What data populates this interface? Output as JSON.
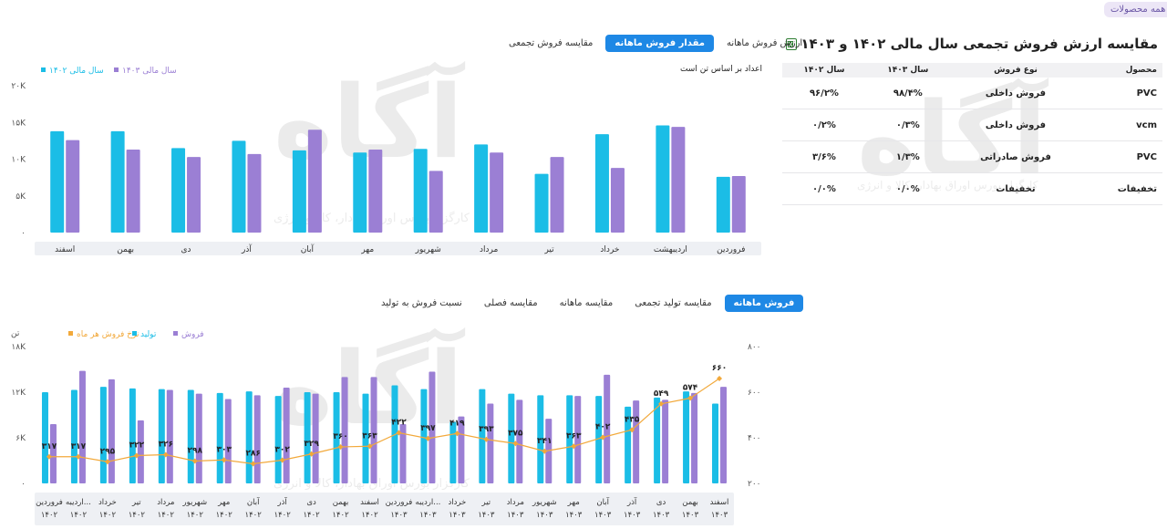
{
  "filter_badge": "همه محصولات",
  "table": {
    "title": "مقایسه ارزش فروش تجمعی سال مالی ۱۴۰۲ و ۱۴۰۳",
    "headers": [
      "محصول",
      "نوع فروش",
      "سال ۱۴۰۳",
      "سال ۱۴۰۲"
    ],
    "rows": [
      [
        "PVC",
        "فروش داخلی",
        "۹۸/۴%",
        "۹۶/۲%"
      ],
      [
        "vcm",
        "فروش داخلی",
        "۰/۳%",
        "۰/۲%"
      ],
      [
        "PVC",
        "فروش صادراتی",
        "۱/۳%",
        "۳/۶%"
      ],
      [
        "تخفیفات",
        "تخفیفات",
        "۰/۰%",
        "۰/۰%"
      ]
    ]
  },
  "top_tabs": [
    "ارزش فروش ماهانه",
    "مقدار فروش ماهانه",
    "مقایسه فروش تجمعی"
  ],
  "top_tab_active": 1,
  "top_note": "اعداد بر اساس تن است",
  "bottom_tabs": [
    "فروش ماهانه",
    "مقایسه تولید تجمعی",
    "مقایسه ماهانه",
    "مقایسه فصلی",
    "نسبت فروش به تولید"
  ],
  "bottom_tab_active": 0,
  "watermark": {
    "brand": "آگاه",
    "slogan": "کارگزار بورس اوراق بهادار، کالا و انرژی"
  },
  "colors": {
    "cyan": "#1bbde6",
    "purple": "#9b7fd4",
    "orange": "#f2a93b",
    "active_tab": "#1e88e5"
  },
  "chart_data": [
    {
      "type": "bar",
      "categories": [
        "فروردین",
        "اردیبهشت",
        "خرداد",
        "تیر",
        "مرداد",
        "شهریور",
        "مهر",
        "آبان",
        "آذر",
        "دی",
        "بهمن",
        "اسفند"
      ],
      "axis_direction": "right-to-left",
      "series": [
        {
          "name": "سال مالی ۱۴۰۲",
          "color": "#1bbde6",
          "values": [
            7600,
            14600,
            13400,
            8000,
            12000,
            11400,
            10900,
            11200,
            12500,
            11500,
            13800,
            13800
          ]
        },
        {
          "name": "سال مالی ۱۴۰۳",
          "color": "#9b7fd4",
          "values": [
            7700,
            14400,
            8800,
            10300,
            10900,
            8400,
            11300,
            14000,
            10700,
            10300,
            11300,
            12600
          ]
        }
      ],
      "yticks": [
        "۰",
        "۵K",
        "۱۰K",
        "۱۵K",
        "۲۰K"
      ],
      "ylim": [
        0,
        20000
      ],
      "legend": "top-left",
      "grid": false
    },
    {
      "type": "bar",
      "categories": [
        [
          "فروردین",
          "۱۴۰۲"
        ],
        [
          "اردیبه...",
          "۱۴۰۲"
        ],
        [
          "خرداد",
          "۱۴۰۲"
        ],
        [
          "تیر",
          "۱۴۰۲"
        ],
        [
          "مرداد",
          "۱۴۰۲"
        ],
        [
          "شهریور",
          "۱۴۰۲"
        ],
        [
          "مهر",
          "۱۴۰۲"
        ],
        [
          "آبان",
          "۱۴۰۲"
        ],
        [
          "آذر",
          "۱۴۰۲"
        ],
        [
          "دی",
          "۱۴۰۲"
        ],
        [
          "بهمن",
          "۱۴۰۲"
        ],
        [
          "اسفند",
          "۱۴۰۲"
        ],
        [
          "فروردین",
          "۱۴۰۳"
        ],
        [
          "اردیبه...",
          "۱۴۰۳"
        ],
        [
          "خرداد",
          "۱۴۰۳"
        ],
        [
          "تیر",
          "۱۴۰۳"
        ],
        [
          "مرداد",
          "۱۴۰۳"
        ],
        [
          "شهریور",
          "۱۴۰۳"
        ],
        [
          "مهر",
          "۱۴۰۳"
        ],
        [
          "آبان",
          "۱۴۰۳"
        ],
        [
          "آذر",
          "۱۴۰۳"
        ],
        [
          "دی",
          "۱۴۰۳"
        ],
        [
          "بهمن",
          "۱۴۰۳"
        ],
        [
          "اسفند",
          "۱۴۰۳"
        ]
      ],
      "axis_direction": "left-to-right",
      "ylabel": "تن",
      "yticks": [
        "۰",
        "۶K",
        "۱۲K",
        "۱۸K"
      ],
      "ylim": [
        0,
        18000
      ],
      "y2ticks": [
        "۲۰۰",
        "۴۰۰",
        "۶۰۰",
        "۸۰۰"
      ],
      "y2lim": [
        200,
        800
      ],
      "legend": "top-left",
      "grid": false,
      "series": [
        {
          "name": "تولید",
          "kind": "bar",
          "color": "#1bbde6",
          "values": [
            12000,
            12300,
            12700,
            12500,
            12400,
            12300,
            11900,
            12100,
            11500,
            12000,
            12000,
            11800,
            12900,
            12400,
            8100,
            12400,
            11800,
            11600,
            11600,
            11500,
            10100,
            11300,
            12100,
            10500
          ]
        },
        {
          "name": "فروش",
          "kind": "bar",
          "color": "#9b7fd4",
          "values": [
            7800,
            14800,
            13700,
            8300,
            12300,
            11800,
            11100,
            11600,
            12600,
            11800,
            14000,
            14000,
            7800,
            14700,
            8800,
            10500,
            11000,
            8500,
            11500,
            14300,
            10900,
            11000,
            11900,
            12700
          ]
        },
        {
          "name": "نرخ فروش هر ماه",
          "kind": "line",
          "color": "#f2a93b",
          "values": [
            317,
            317,
            295,
            322,
            326,
            298,
            303,
            286,
            302,
            329,
            360,
            363,
            422,
            397,
            419,
            393,
            375,
            341,
            363,
            402,
            435,
            549,
            574,
            660
          ],
          "labels": [
            "۳۱۷",
            "۳۱۷",
            "۲۹۵",
            "۳۲۲",
            "۳۲۶",
            "۲۹۸",
            "۳۰۳",
            "۲۸۶",
            "۳۰۲",
            "۳۲۹",
            "۳۶۰",
            "۳۶۳",
            "۴۲۲",
            "۳۹۷",
            "۴۱۹",
            "۳۹۳",
            "۳۷۵",
            "۳۴۱",
            "۳۶۳",
            "۴۰۲",
            "۴۳۵",
            "۵۴۹",
            "۵۷۴",
            "۶۶۰"
          ]
        }
      ]
    }
  ]
}
